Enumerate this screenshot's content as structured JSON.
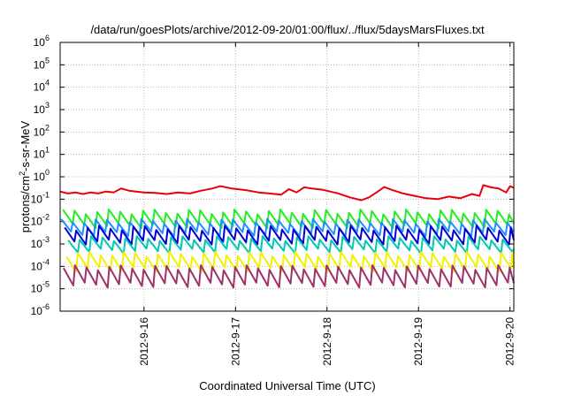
{
  "chart_data": {
    "type": "line",
    "title": "/data/run/goesPlots/archive/2012-09-20/01:00/flux/../flux/5daysMarsFluxes.txt",
    "xlabel": "Coordinated Universal Time (UTC)",
    "ylabel": {
      "pre": "protons/cm",
      "sup": "2",
      "post": "-s-sr-MeV"
    },
    "yscale": "log",
    "ylim_exp": [
      -6,
      6
    ],
    "ytick_base": "10",
    "ytick_exponents": [
      "6",
      "5",
      "4",
      "3",
      "2",
      "1",
      "0",
      "-1",
      "-2",
      "-3",
      "-4",
      "-5",
      "-6"
    ],
    "xlim": [
      "2012-09-15T02:00",
      "2012-09-20T01:00"
    ],
    "xticks": [
      {
        "date": "2012-09-16T00:00",
        "label": "2012-9-16"
      },
      {
        "date": "2012-09-17T00:00",
        "label": "2012-9-17"
      },
      {
        "date": "2012-09-18T00:00",
        "label": "2012-9-18"
      },
      {
        "date": "2012-09-19T00:00",
        "label": "2012-9-19"
      },
      {
        "date": "2012-09-20T00:00",
        "label": "2012-9-20"
      }
    ],
    "grid": true,
    "series": [
      {
        "color": "#e8000b",
        "values": [
          [
            "2012-09-15T02:00",
            0.22
          ],
          [
            "2012-09-15T04:00",
            0.18
          ],
          [
            "2012-09-15T06:00",
            0.2
          ],
          [
            "2012-09-15T08:00",
            0.17
          ],
          [
            "2012-09-15T10:00",
            0.2
          ],
          [
            "2012-09-15T12:00",
            0.18
          ],
          [
            "2012-09-15T14:00",
            0.22
          ],
          [
            "2012-09-15T16:00",
            0.2
          ],
          [
            "2012-09-15T18:00",
            0.3
          ],
          [
            "2012-09-15T20:00",
            0.24
          ],
          [
            "2012-09-15T22:00",
            0.22
          ],
          [
            "2012-09-16T00:00",
            0.2
          ],
          [
            "2012-09-16T03:00",
            0.19
          ],
          [
            "2012-09-16T06:00",
            0.17
          ],
          [
            "2012-09-16T09:00",
            0.2
          ],
          [
            "2012-09-16T12:00",
            0.18
          ],
          [
            "2012-09-16T15:00",
            0.24
          ],
          [
            "2012-09-16T18:00",
            0.3
          ],
          [
            "2012-09-16T20:00",
            0.38
          ],
          [
            "2012-09-16T23:00",
            0.3
          ],
          [
            "2012-09-17T03:00",
            0.25
          ],
          [
            "2012-09-17T06:00",
            0.2
          ],
          [
            "2012-09-17T09:00",
            0.18
          ],
          [
            "2012-09-17T12:00",
            0.16
          ],
          [
            "2012-09-17T14:00",
            0.28
          ],
          [
            "2012-09-17T16:00",
            0.2
          ],
          [
            "2012-09-17T18:00",
            0.34
          ],
          [
            "2012-09-17T20:00",
            0.3
          ],
          [
            "2012-09-17T23:00",
            0.26
          ],
          [
            "2012-09-18T03:00",
            0.18
          ],
          [
            "2012-09-18T06:00",
            0.12
          ],
          [
            "2012-09-18T09:00",
            0.09
          ],
          [
            "2012-09-18T11:00",
            0.12
          ],
          [
            "2012-09-18T13:00",
            0.2
          ],
          [
            "2012-09-18T15:00",
            0.35
          ],
          [
            "2012-09-18T17:00",
            0.26
          ],
          [
            "2012-09-18T20:00",
            0.18
          ],
          [
            "2012-09-18T23:00",
            0.14
          ],
          [
            "2012-09-19T02:00",
            0.11
          ],
          [
            "2012-09-19T05:00",
            0.1
          ],
          [
            "2012-09-19T08:00",
            0.13
          ],
          [
            "2012-09-19T11:00",
            0.11
          ],
          [
            "2012-09-19T14:00",
            0.17
          ],
          [
            "2012-09-19T16:00",
            0.14
          ],
          [
            "2012-09-19T17:00",
            0.42
          ],
          [
            "2012-09-19T19:00",
            0.34
          ],
          [
            "2012-09-19T21:00",
            0.3
          ],
          [
            "2012-09-19T23:00",
            0.2
          ],
          [
            "2012-09-20T00:00",
            0.38
          ],
          [
            "2012-09-20T01:00",
            0.32
          ]
        ]
      },
      {
        "color": "#22ee22",
        "base": 0.008,
        "amp": 3.5,
        "phase": 0.25
      },
      {
        "color": "#1e90ff",
        "base": 0.0035,
        "amp": 3.0,
        "phase": 0.1
      },
      {
        "color": "#0000d0",
        "base": 0.0015,
        "amp": 3.5,
        "phase": 0.4
      },
      {
        "color": "#00c8b4",
        "base": 0.0006,
        "amp": 3.0,
        "phase": 0.7
      },
      {
        "color": "#f2f200",
        "base": 9e-05,
        "amp": 4.0,
        "phase": 0.55
      },
      {
        "color": "#a0306a",
        "base": 1.8e-05,
        "amp": 5.0,
        "phase": 0.3
      }
    ]
  }
}
